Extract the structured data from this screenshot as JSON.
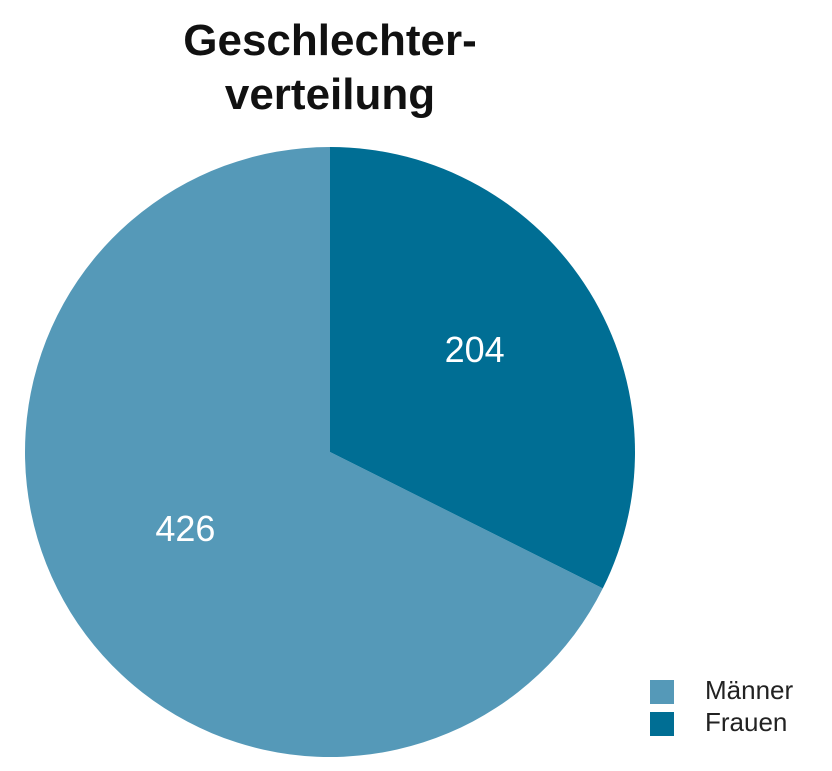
{
  "chart_data": {
    "type": "pie",
    "title": "Geschlechter-\nverteilung",
    "categories": [
      "Männer",
      "Frauen"
    ],
    "values": [
      426,
      204
    ],
    "colors": [
      "#5599b8",
      "#006e94"
    ],
    "legend": "bottom-right"
  }
}
